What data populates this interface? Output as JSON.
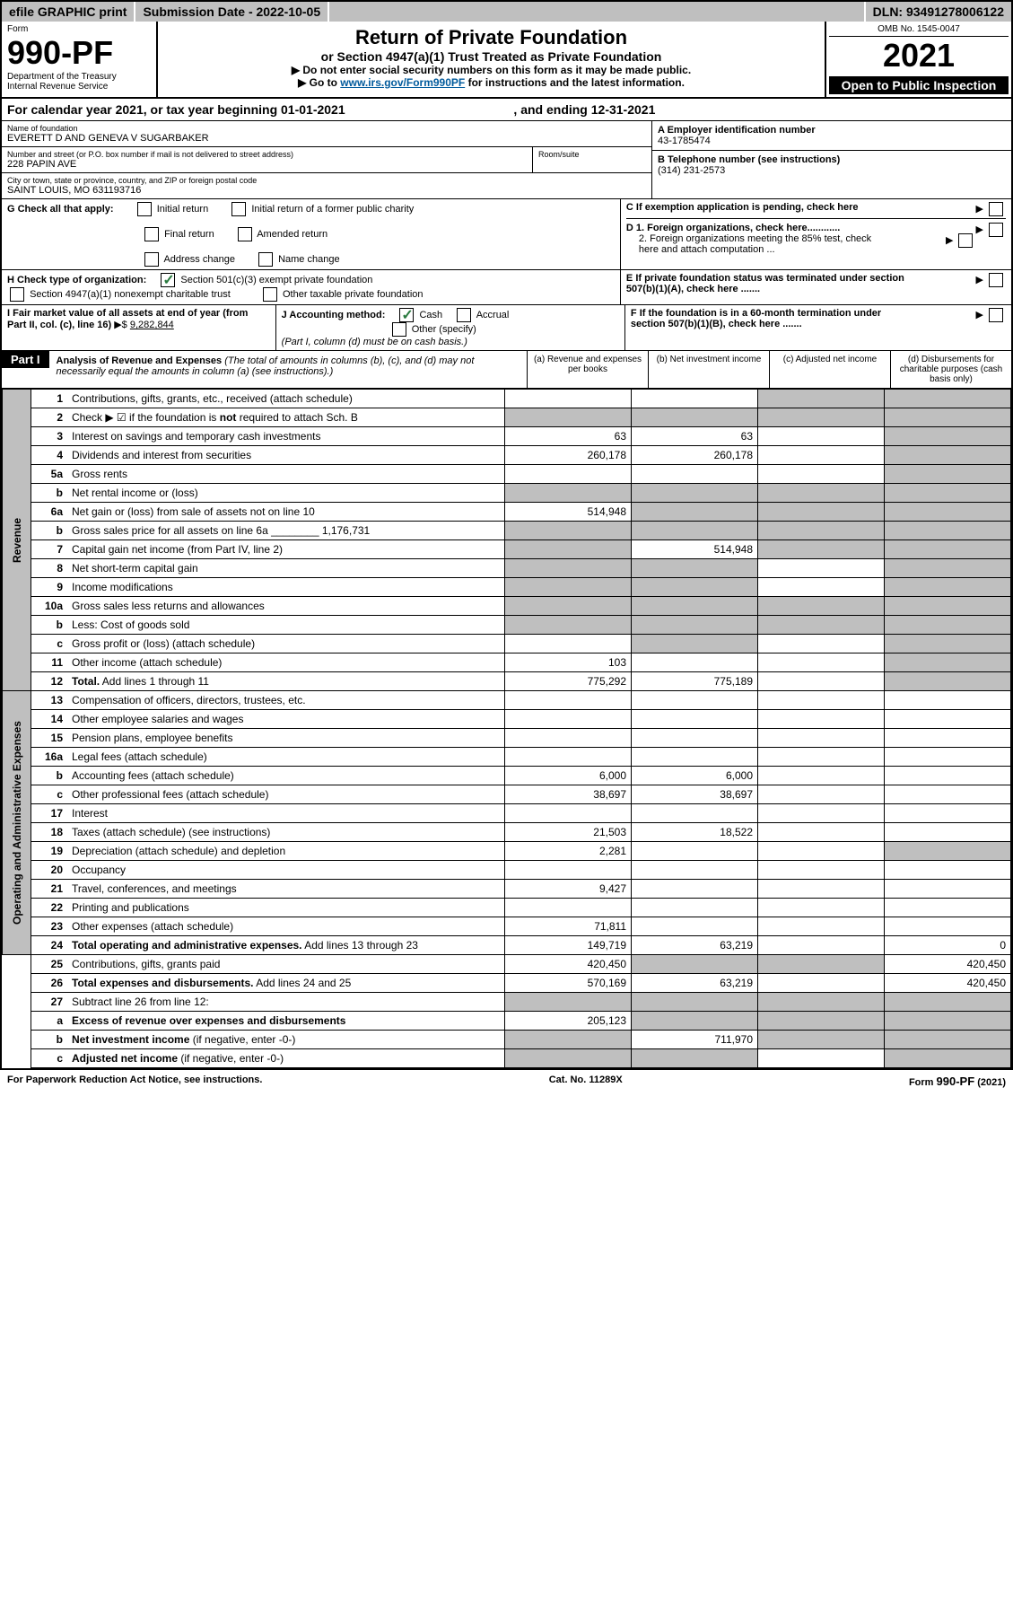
{
  "topbar": {
    "efile": "efile GRAPHIC print",
    "submission_label": "Submission Date - 2022-10-05",
    "dln": "DLN: 93491278006122"
  },
  "header": {
    "form_label": "Form",
    "form_num": "990-PF",
    "dept": "Department of the Treasury",
    "irs": "Internal Revenue Service",
    "title": "Return of Private Foundation",
    "subtitle": "or Section 4947(a)(1) Trust Treated as Private Foundation",
    "instr1": "▶ Do not enter social security numbers on this form as it may be made public.",
    "instr2_pre": "▶ Go to ",
    "instr2_link": "www.irs.gov/Form990PF",
    "instr2_post": " for instructions and the latest information.",
    "omb": "OMB No. 1545-0047",
    "year": "2021",
    "open": "Open to Public Inspection"
  },
  "calyear": {
    "text": "For calendar year 2021, or tax year beginning 01-01-2021",
    "spacer": ", and ending 12-31-2021"
  },
  "foundation": {
    "name_label": "Name of foundation",
    "name": "EVERETT D AND GENEVA V SUGARBAKER",
    "addr_label": "Number and street (or P.O. box number if mail is not delivered to street address)",
    "room_label": "Room/suite",
    "addr": "228 PAPIN AVE",
    "city_label": "City or town, state or province, country, and ZIP or foreign postal code",
    "city": "SAINT LOUIS, MO  631193716",
    "a_label": "A Employer identification number",
    "a_val": "43-1785474",
    "b_label": "B Telephone number (see instructions)",
    "b_val": "(314) 231-2573",
    "c_label": "C If exemption application is pending, check here",
    "d1": "D 1. Foreign organizations, check here............",
    "d2": "2. Foreign organizations meeting the 85% test, check here and attach computation ...",
    "e_label": "E  If private foundation status was terminated under section 507(b)(1)(A), check here .......",
    "f_label": "F  If the foundation is in a 60-month termination under section 507(b)(1)(B), check here .......",
    "g_label": "G Check all that apply:",
    "g_opts": [
      "Initial return",
      "Initial return of a former public charity",
      "Final return",
      "Amended return",
      "Address change",
      "Name change"
    ],
    "h_label": "H Check type of organization:",
    "h1": "Section 501(c)(3) exempt private foundation",
    "h2": "Section 4947(a)(1) nonexempt charitable trust",
    "h3": "Other taxable private foundation",
    "i_label": "I Fair market value of all assets at end of year (from Part II, col. (c), line 16)",
    "i_val": "9,282,844",
    "j_label": "J Accounting method:",
    "j_cash": "Cash",
    "j_accrual": "Accrual",
    "j_other": "Other (specify)",
    "j_note": "(Part I, column (d) must be on cash basis.)"
  },
  "part1": {
    "label": "Part I",
    "title": "Analysis of Revenue and Expenses",
    "note": "(The total of amounts in columns (b), (c), and (d) may not necessarily equal the amounts in column (a) (see instructions).)",
    "col_a": "(a) Revenue and expenses per books",
    "col_b": "(b) Net investment income",
    "col_c": "(c) Adjusted net income",
    "col_d": "(d) Disbursements for charitable purposes (cash basis only)"
  },
  "sidelabels": {
    "revenue": "Revenue",
    "expenses": "Operating and Administrative Expenses"
  },
  "rows": [
    {
      "num": "1",
      "lbl": "Contributions, gifts, grants, etc., received (attach schedule)",
      "a": "",
      "b": "",
      "c_shade": true,
      "d_shade": true
    },
    {
      "num": "2",
      "lbl": "Check ▶ ☑ if the foundation is <b>not</b> required to attach Sch. B",
      "a_shade": true,
      "b_shade": true,
      "c_shade": true,
      "d_shade": true
    },
    {
      "num": "3",
      "lbl": "Interest on savings and temporary cash investments",
      "a": "63",
      "b": "63",
      "c": "",
      "d_shade": true
    },
    {
      "num": "4",
      "lbl": "Dividends and interest from securities",
      "a": "260,178",
      "b": "260,178",
      "c": "",
      "d_shade": true
    },
    {
      "num": "5a",
      "lbl": "Gross rents",
      "a": "",
      "b": "",
      "c": "",
      "d_shade": true
    },
    {
      "num": "b",
      "lbl": "Net rental income or (loss)",
      "a_shade": true,
      "b_shade": true,
      "c_shade": true,
      "d_shade": true
    },
    {
      "num": "6a",
      "lbl": "Net gain or (loss) from sale of assets not on line 10",
      "a": "514,948",
      "b_shade": true,
      "c_shade": true,
      "d_shade": true
    },
    {
      "num": "b",
      "lbl": "Gross sales price for all assets on line 6a ________ 1,176,731",
      "a_shade": true,
      "b_shade": true,
      "c_shade": true,
      "d_shade": true
    },
    {
      "num": "7",
      "lbl": "Capital gain net income (from Part IV, line 2)",
      "a_shade": true,
      "b": "514,948",
      "c_shade": true,
      "d_shade": true
    },
    {
      "num": "8",
      "lbl": "Net short-term capital gain",
      "a_shade": true,
      "b_shade": true,
      "c": "",
      "d_shade": true
    },
    {
      "num": "9",
      "lbl": "Income modifications",
      "a_shade": true,
      "b_shade": true,
      "c": "",
      "d_shade": true
    },
    {
      "num": "10a",
      "lbl": "Gross sales less returns and allowances",
      "a_shade": true,
      "b_shade": true,
      "c_shade": true,
      "d_shade": true
    },
    {
      "num": "b",
      "lbl": "Less: Cost of goods sold",
      "a_shade": true,
      "b_shade": true,
      "c_shade": true,
      "d_shade": true
    },
    {
      "num": "c",
      "lbl": "Gross profit or (loss) (attach schedule)",
      "a": "",
      "b_shade": true,
      "c": "",
      "d_shade": true
    },
    {
      "num": "11",
      "lbl": "Other income (attach schedule)",
      "a": "103",
      "b": "",
      "c": "",
      "d_shade": true
    },
    {
      "num": "12",
      "lbl": "<b>Total.</b> Add lines 1 through 11",
      "a": "775,292",
      "b": "775,189",
      "c": "",
      "d_shade": true
    },
    {
      "num": "13",
      "lbl": "Compensation of officers, directors, trustees, etc.",
      "a": "",
      "b": "",
      "c": "",
      "d": ""
    },
    {
      "num": "14",
      "lbl": "Other employee salaries and wages",
      "a": "",
      "b": "",
      "c": "",
      "d": ""
    },
    {
      "num": "15",
      "lbl": "Pension plans, employee benefits",
      "a": "",
      "b": "",
      "c": "",
      "d": ""
    },
    {
      "num": "16a",
      "lbl": "Legal fees (attach schedule)",
      "a": "",
      "b": "",
      "c": "",
      "d": ""
    },
    {
      "num": "b",
      "lbl": "Accounting fees (attach schedule)",
      "a": "6,000",
      "b": "6,000",
      "c": "",
      "d": ""
    },
    {
      "num": "c",
      "lbl": "Other professional fees (attach schedule)",
      "a": "38,697",
      "b": "38,697",
      "c": "",
      "d": ""
    },
    {
      "num": "17",
      "lbl": "Interest",
      "a": "",
      "b": "",
      "c": "",
      "d": ""
    },
    {
      "num": "18",
      "lbl": "Taxes (attach schedule) (see instructions)",
      "a": "21,503",
      "b": "18,522",
      "c": "",
      "d": ""
    },
    {
      "num": "19",
      "lbl": "Depreciation (attach schedule) and depletion",
      "a": "2,281",
      "b": "",
      "c": "",
      "d_shade": true
    },
    {
      "num": "20",
      "lbl": "Occupancy",
      "a": "",
      "b": "",
      "c": "",
      "d": ""
    },
    {
      "num": "21",
      "lbl": "Travel, conferences, and meetings",
      "a": "9,427",
      "b": "",
      "c": "",
      "d": ""
    },
    {
      "num": "22",
      "lbl": "Printing and publications",
      "a": "",
      "b": "",
      "c": "",
      "d": ""
    },
    {
      "num": "23",
      "lbl": "Other expenses (attach schedule)",
      "a": "71,811",
      "b": "",
      "c": "",
      "d": ""
    },
    {
      "num": "24",
      "lbl": "<b>Total operating and administrative expenses.</b> Add lines 13 through 23",
      "a": "149,719",
      "b": "63,219",
      "c": "",
      "d": "0"
    },
    {
      "num": "25",
      "lbl": "Contributions, gifts, grants paid",
      "a": "420,450",
      "b_shade": true,
      "c_shade": true,
      "d": "420,450"
    },
    {
      "num": "26",
      "lbl": "<b>Total expenses and disbursements.</b> Add lines 24 and 25",
      "a": "570,169",
      "b": "63,219",
      "c": "",
      "d": "420,450"
    },
    {
      "num": "27",
      "lbl": "Subtract line 26 from line 12:",
      "a_shade": true,
      "b_shade": true,
      "c_shade": true,
      "d_shade": true
    },
    {
      "num": "a",
      "lbl": "<b>Excess of revenue over expenses and disbursements</b>",
      "a": "205,123",
      "b_shade": true,
      "c_shade": true,
      "d_shade": true
    },
    {
      "num": "b",
      "lbl": "<b>Net investment income</b> (if negative, enter -0-)",
      "a_shade": true,
      "b": "711,970",
      "c_shade": true,
      "d_shade": true
    },
    {
      "num": "c",
      "lbl": "<b>Adjusted net income</b> (if negative, enter -0-)",
      "a_shade": true,
      "b_shade": true,
      "c": "",
      "d_shade": true
    }
  ],
  "footer": {
    "left": "For Paperwork Reduction Act Notice, see instructions.",
    "mid": "Cat. No. 11289X",
    "right": "Form 990-PF (2021)"
  },
  "row_groups": {
    "revenue_start": 0,
    "revenue_end": 16,
    "expense_start": 16,
    "expense_end": 30
  }
}
